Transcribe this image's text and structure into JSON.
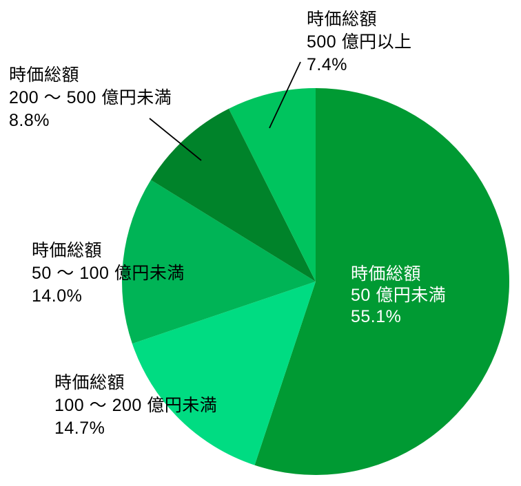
{
  "chart_data": {
    "type": "pie",
    "title": "",
    "unit": "%",
    "total": 100,
    "start_angle_deg": 0,
    "direction": "clockwise",
    "legend": "none",
    "background": "#FFFFFF",
    "label_text_color": "#000000",
    "inside_label_text_color": "#FFFFFF",
    "leader_line_color": "#000000",
    "slices": [
      {
        "category": "時価総額 50 億円未満",
        "value": 55.1,
        "color": "#009A33",
        "label_placement": "inside",
        "label_lines": [
          "時価総額",
          "50 億円未満",
          "55.1%"
        ]
      },
      {
        "category": "時価総額 100 ～ 200 億円未満",
        "value": 14.7,
        "color": "#00DC82",
        "label_placement": "outside-bottom-left",
        "label_lines": [
          "時価総額",
          "100 ～ 200 億円未満",
          "14.7%"
        ]
      },
      {
        "category": "時価総額 50 ～ 100 億円未満",
        "value": 14.0,
        "color": "#00B456",
        "label_placement": "outside-left",
        "label_lines": [
          "時価総額",
          "50 ～ 100 億円未満",
          "14.0%"
        ]
      },
      {
        "category": "時価総額 200 ～ 500 億円未満",
        "value": 8.8,
        "color": "#00832A",
        "label_placement": "outside-top-left",
        "label_lines": [
          "時価総額",
          "200 ～ 500 億円未満",
          "8.8%"
        ]
      },
      {
        "category": "時価総額 500 億円以上",
        "value": 7.4,
        "color": "#00C45E",
        "label_placement": "outside-top",
        "label_lines": [
          "時価総額",
          "500 億円以上",
          "7.4%"
        ]
      }
    ]
  }
}
